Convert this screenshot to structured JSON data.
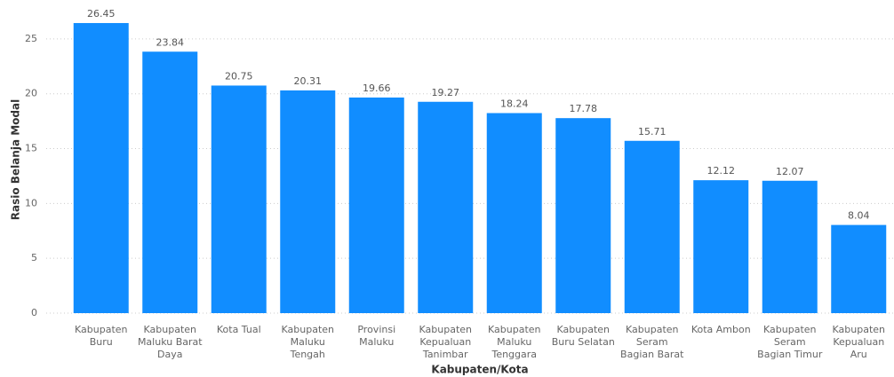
{
  "chart_data": {
    "type": "bar",
    "x_label": "Kabupaten/Kota",
    "y_label": "Rasio Belanja Modal",
    "categories": [
      "Kabupaten Buru",
      "Kabupaten Maluku Barat Daya",
      "Kota Tual",
      "Kabupaten Maluku Tengah",
      "Provinsi Maluku",
      "Kabupaten Kepualuan Tanimbar",
      "Kabupaten Maluku Tenggara",
      "Kabupaten Buru Selatan",
      "Kabupaten Seram Bagian Barat",
      "Kota Ambon",
      "Kabupaten Seram Bagian Timur",
      "Kabupaten Kepualuan Aru"
    ],
    "values": [
      26.45,
      23.84,
      20.75,
      20.31,
      19.66,
      19.27,
      18.24,
      17.78,
      15.71,
      12.12,
      12.07,
      8.04
    ],
    "color": "#118DFF",
    "ylim": [
      0,
      27.5
    ],
    "yticks": [
      0,
      5,
      10,
      15,
      20,
      25
    ],
    "grid": true
  }
}
